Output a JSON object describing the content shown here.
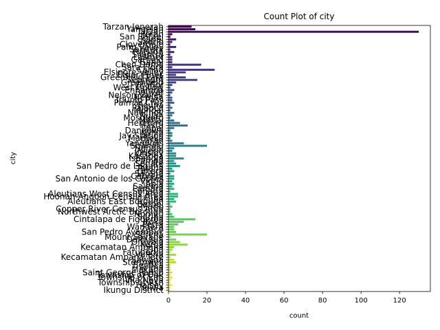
{
  "chart_data": {
    "type": "bar",
    "orientation": "horizontal",
    "title": "Count Plot of city",
    "xlabel": "count",
    "ylabel": "city",
    "xlim": [
      0,
      136
    ],
    "xticks": [
      0,
      20,
      40,
      60,
      80,
      100,
      120
    ],
    "grid": false,
    "legend": "none",
    "colormap": [
      "#440154",
      "#482878",
      "#3e4989",
      "#31688e",
      "#26828e",
      "#1f9e89",
      "#35b779",
      "#6ece58",
      "#b5de2b",
      "#fde725"
    ],
    "categories": [
      "Tarzan Jenerah",
      "Yangelah",
      "Tarzan",
      "Jerah",
      "San Rafael",
      "Kanel",
      "Sadrip",
      "Cloverdale",
      "Palm Valley",
      "Sanitary",
      "Ralston",
      "Silantra",
      "Lasmer",
      "Garfield",
      "Ganal",
      "Chen Doma",
      "Sara Flora",
      "Cariba",
      "Elsinore Valley",
      "Elsior Pines",
      "Greenfield Park",
      "Sepmont",
      "Greenfield",
      "Vitaflor",
      "West Hollow",
      "Enhamba",
      "Bolivar",
      "Nelson Valley",
      "Nernan",
      "Triunfo Pass",
      "Palmar Cruz",
      "Reuna",
      "Palanca",
      "Mondal",
      "Naochoy",
      "Nulah",
      "Mosquero",
      "Mohal",
      "Hereford",
      "Hasta",
      "Lopal",
      "Dangowa",
      "Kunia",
      "Jay Station",
      "Marbella",
      "Sarah",
      "Yanopolis",
      "Shanalu",
      "Hondai",
      "Nijeria",
      "Kinsley",
      "Kasanga",
      "Ishandia",
      "Pampa",
      "Senate",
      "San Pedro de Laguna",
      "Tatana",
      "Ortera",
      "Sarana",
      "Cabrera",
      "San Antonio de los Cobres",
      "Vidrio",
      "Apia",
      "Salema",
      "Lamara",
      "Sonaria",
      "Aleutians West Census Area",
      "Hoonah-Angoon Census Area",
      "Chupa",
      "Aleutians East Borough",
      "Bethel",
      "Marlo",
      "Copper River Census Area",
      "Northwest Arctic Borough",
      "Nomen",
      "Sariba",
      "Cintalapa de Figueroa",
      "Iroka",
      "Petra",
      "Wandera",
      "Zarco",
      "San Pedro Ayampuc",
      "Serena",
      "Mount Savage",
      "Dalmatia",
      "Oruvala",
      "Keroa",
      "Kecamatan Ampana",
      "Ziba",
      "Fatuberliu",
      "Valeria",
      "Kecamatan Ampana Tete",
      "Sawana",
      "Stormwell",
      "Benfica",
      "Arima",
      "Makana",
      "Saint George Parish",
      "Township of Oak",
      "Township of Elm",
      "Vila Nova",
      "Township of Ash",
      "Halsey",
      "Yelwa",
      "Ikungu District"
    ],
    "values": [
      12,
      14,
      130,
      2,
      1,
      4,
      2,
      1,
      4,
      1,
      3,
      1,
      2,
      2,
      2,
      17,
      2,
      24,
      9,
      4,
      9,
      15,
      4,
      2,
      1,
      3,
      2,
      1,
      2,
      2,
      3,
      1,
      2,
      1,
      3,
      2,
      1,
      3,
      6,
      10,
      3,
      1,
      2,
      2,
      1,
      2,
      8,
      20,
      3,
      2,
      4,
      4,
      8,
      3,
      4,
      6,
      2,
      3,
      1,
      3,
      3,
      2,
      3,
      2,
      3,
      1,
      5,
      5,
      3,
      4,
      1,
      2,
      1,
      1,
      2,
      3,
      14,
      8,
      5,
      3,
      3,
      4,
      20,
      1,
      4,
      6,
      10,
      3,
      2,
      1,
      4,
      1,
      3,
      4,
      1,
      1,
      1,
      2,
      1,
      2,
      1,
      1,
      2,
      1,
      1
    ]
  }
}
